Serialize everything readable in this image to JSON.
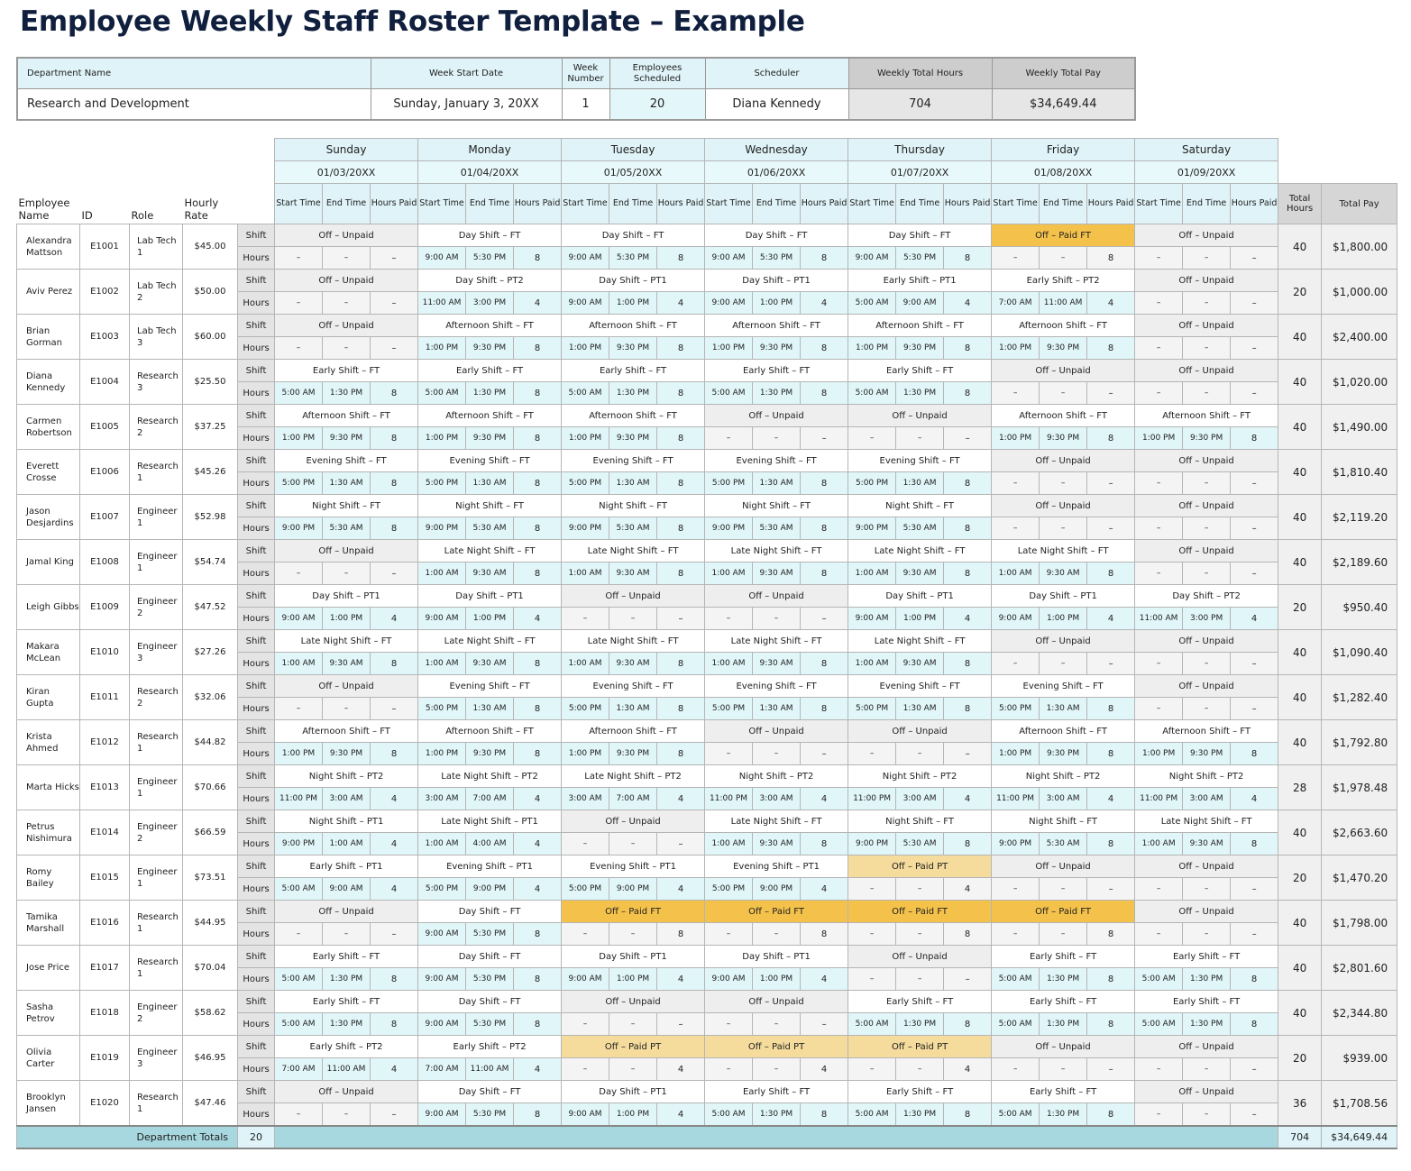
{
  "title": "Employee Weekly Staff Roster Template – Example",
  "summary": {
    "headers": [
      "Department Name",
      "Week Start Date",
      "Week Number",
      "Employees Scheduled",
      "Scheduler",
      "Weekly Total Hours",
      "Weekly Total Pay"
    ],
    "values": [
      "Research and Development",
      "Sunday, January 3, 20XX",
      1,
      20,
      "Diana Kennedy",
      704,
      "$34,649.44"
    ]
  },
  "days": [
    {
      "name": "Sunday",
      "date": "01/03/20XX"
    },
    {
      "name": "Monday",
      "date": "01/04/20XX"
    },
    {
      "name": "Tuesday",
      "date": "01/05/20XX"
    },
    {
      "name": "Wednesday",
      "date": "01/06/20XX"
    },
    {
      "name": "Thursday",
      "date": "01/07/20XX"
    },
    {
      "name": "Friday",
      "date": "01/08/20XX"
    },
    {
      "name": "Saturday",
      "date": "01/09/20XX"
    }
  ],
  "day_columns": [
    "Start Time",
    "End Time",
    "Hours Paid"
  ],
  "left_headers": [
    "Employee Name",
    "ID",
    "Role",
    "Hourly Rate"
  ],
  "right_headers": [
    "Total Hours",
    "Total Pay"
  ],
  "row_labels": [
    "Shift",
    "Hours"
  ],
  "employees": [
    {
      "name": "Alexandra Mattson",
      "id": "E1001",
      "role": "Lab Tech 1",
      "rate": "$45.00",
      "total_hours": 40,
      "total_pay": "$1,800.00",
      "days": [
        [
          "Off – Unpaid",
          "–",
          "–",
          "–"
        ],
        [
          "Day Shift – FT",
          "9:00 AM",
          "5:30 PM",
          8
        ],
        [
          "Day Shift – FT",
          "9:00 AM",
          "5:30 PM",
          8
        ],
        [
          "Day Shift – FT",
          "9:00 AM",
          "5:30 PM",
          8
        ],
        [
          "Day Shift – FT",
          "9:00 AM",
          "5:30 PM",
          8
        ],
        [
          "Off – Paid FT",
          "–",
          "–",
          8
        ],
        [
          "Off – Unpaid",
          "–",
          "–",
          "–"
        ]
      ]
    },
    {
      "name": "Aviv Perez",
      "id": "E1002",
      "role": "Lab Tech 2",
      "rate": "$50.00",
      "total_hours": 20,
      "total_pay": "$1,000.00",
      "days": [
        [
          "Off – Unpaid",
          "–",
          "–",
          "–"
        ],
        [
          "Day Shift – PT2",
          "11:00 AM",
          "3:00 PM",
          4
        ],
        [
          "Day Shift – PT1",
          "9:00 AM",
          "1:00 PM",
          4
        ],
        [
          "Day Shift – PT1",
          "9:00 AM",
          "1:00 PM",
          4
        ],
        [
          "Early Shift – PT1",
          "5:00 AM",
          "9:00 AM",
          4
        ],
        [
          "Early Shift – PT2",
          "7:00 AM",
          "11:00 AM",
          4
        ],
        [
          "Off – Unpaid",
          "–",
          "–",
          "–"
        ]
      ]
    },
    {
      "name": "Brian Gorman",
      "id": "E1003",
      "role": "Lab Tech 3",
      "rate": "$60.00",
      "total_hours": 40,
      "total_pay": "$2,400.00",
      "days": [
        [
          "Off – Unpaid",
          "–",
          "–",
          "–"
        ],
        [
          "Afternoon Shift – FT",
          "1:00 PM",
          "9:30 PM",
          8
        ],
        [
          "Afternoon Shift – FT",
          "1:00 PM",
          "9:30 PM",
          8
        ],
        [
          "Afternoon Shift – FT",
          "1:00 PM",
          "9:30 PM",
          8
        ],
        [
          "Afternoon Shift – FT",
          "1:00 PM",
          "9:30 PM",
          8
        ],
        [
          "Afternoon Shift – FT",
          "1:00 PM",
          "9:30 PM",
          8
        ],
        [
          "Off – Unpaid",
          "–",
          "–",
          "–"
        ]
      ]
    },
    {
      "name": "Diana Kennedy",
      "id": "E1004",
      "role": "Research 3",
      "rate": "$25.50",
      "total_hours": 40,
      "total_pay": "$1,020.00",
      "days": [
        [
          "Early Shift – FT",
          "5:00 AM",
          "1:30 PM",
          8
        ],
        [
          "Early Shift – FT",
          "5:00 AM",
          "1:30 PM",
          8
        ],
        [
          "Early Shift – FT",
          "5:00 AM",
          "1:30 PM",
          8
        ],
        [
          "Early Shift – FT",
          "5:00 AM",
          "1:30 PM",
          8
        ],
        [
          "Early Shift – FT",
          "5:00 AM",
          "1:30 PM",
          8
        ],
        [
          "Off – Unpaid",
          "–",
          "–",
          "–"
        ],
        [
          "Off – Unpaid",
          "–",
          "–",
          "–"
        ]
      ]
    },
    {
      "name": "Carmen Robertson",
      "id": "E1005",
      "role": "Research 2",
      "rate": "$37.25",
      "total_hours": 40,
      "total_pay": "$1,490.00",
      "days": [
        [
          "Afternoon Shift – FT",
          "1:00 PM",
          "9:30 PM",
          8
        ],
        [
          "Afternoon Shift – FT",
          "1:00 PM",
          "9:30 PM",
          8
        ],
        [
          "Afternoon Shift – FT",
          "1:00 PM",
          "9:30 PM",
          8
        ],
        [
          "Off – Unpaid",
          "–",
          "–",
          "–"
        ],
        [
          "Off – Unpaid",
          "–",
          "–",
          "–"
        ],
        [
          "Afternoon Shift – FT",
          "1:00 PM",
          "9:30 PM",
          8
        ],
        [
          "Afternoon Shift – FT",
          "1:00 PM",
          "9:30 PM",
          8
        ]
      ]
    },
    {
      "name": "Everett Crosse",
      "id": "E1006",
      "role": "Research 1",
      "rate": "$45.26",
      "total_hours": 40,
      "total_pay": "$1,810.40",
      "days": [
        [
          "Evening Shift – FT",
          "5:00 PM",
          "1:30 AM",
          8
        ],
        [
          "Evening Shift – FT",
          "5:00 PM",
          "1:30 AM",
          8
        ],
        [
          "Evening Shift – FT",
          "5:00 PM",
          "1:30 AM",
          8
        ],
        [
          "Evening Shift – FT",
          "5:00 PM",
          "1:30 AM",
          8
        ],
        [
          "Evening Shift – FT",
          "5:00 PM",
          "1:30 AM",
          8
        ],
        [
          "Off – Unpaid",
          "–",
          "–",
          "–"
        ],
        [
          "Off – Unpaid",
          "–",
          "–",
          "–"
        ]
      ]
    },
    {
      "name": "Jason Desjardins",
      "id": "E1007",
      "role": "Engineer 1",
      "rate": "$52.98",
      "total_hours": 40,
      "total_pay": "$2,119.20",
      "days": [
        [
          "Night Shift – FT",
          "9:00 PM",
          "5:30 AM",
          8
        ],
        [
          "Night Shift – FT",
          "9:00 PM",
          "5:30 AM",
          8
        ],
        [
          "Night Shift – FT",
          "9:00 PM",
          "5:30 AM",
          8
        ],
        [
          "Night Shift – FT",
          "9:00 PM",
          "5:30 AM",
          8
        ],
        [
          "Night Shift – FT",
          "9:00 PM",
          "5:30 AM",
          8
        ],
        [
          "Off – Unpaid",
          "–",
          "–",
          "–"
        ],
        [
          "Off – Unpaid",
          "–",
          "–",
          "–"
        ]
      ]
    },
    {
      "name": "Jamal King",
      "id": "E1008",
      "role": "Engineer 1",
      "rate": "$54.74",
      "total_hours": 40,
      "total_pay": "$2,189.60",
      "days": [
        [
          "Off – Unpaid",
          "–",
          "–",
          "–"
        ],
        [
          "Late Night Shift – FT",
          "1:00 AM",
          "9:30 AM",
          8
        ],
        [
          "Late Night Shift – FT",
          "1:00 AM",
          "9:30 AM",
          8
        ],
        [
          "Late Night Shift – FT",
          "1:00 AM",
          "9:30 AM",
          8
        ],
        [
          "Late Night Shift – FT",
          "1:00 AM",
          "9:30 AM",
          8
        ],
        [
          "Late Night Shift – FT",
          "1:00 AM",
          "9:30 AM",
          8
        ],
        [
          "Off – Unpaid",
          "–",
          "–",
          "–"
        ]
      ]
    },
    {
      "name": "Leigh Gibbs",
      "id": "E1009",
      "role": "Engineer 2",
      "rate": "$47.52",
      "total_hours": 20,
      "total_pay": "$950.40",
      "days": [
        [
          "Day Shift – PT1",
          "9:00 AM",
          "1:00 PM",
          4
        ],
        [
          "Day Shift – PT1",
          "9:00 AM",
          "1:00 PM",
          4
        ],
        [
          "Off – Unpaid",
          "–",
          "–",
          "–"
        ],
        [
          "Off – Unpaid",
          "–",
          "–",
          "–"
        ],
        [
          "Day Shift – PT1",
          "9:00 AM",
          "1:00 PM",
          4
        ],
        [
          "Day Shift – PT1",
          "9:00 AM",
          "1:00 PM",
          4
        ],
        [
          "Day Shift – PT2",
          "11:00 AM",
          "3:00 PM",
          4
        ]
      ]
    },
    {
      "name": "Makara McLean",
      "id": "E1010",
      "role": "Engineer 3",
      "rate": "$27.26",
      "total_hours": 40,
      "total_pay": "$1,090.40",
      "days": [
        [
          "Late Night Shift – FT",
          "1:00 AM",
          "9:30 AM",
          8
        ],
        [
          "Late Night Shift – FT",
          "1:00 AM",
          "9:30 AM",
          8
        ],
        [
          "Late Night Shift – FT",
          "1:00 AM",
          "9:30 AM",
          8
        ],
        [
          "Late Night Shift – FT",
          "1:00 AM",
          "9:30 AM",
          8
        ],
        [
          "Late Night Shift – FT",
          "1:00 AM",
          "9:30 AM",
          8
        ],
        [
          "Off – Unpaid",
          "–",
          "–",
          "–"
        ],
        [
          "Off – Unpaid",
          "–",
          "–",
          "–"
        ]
      ]
    },
    {
      "name": "Kiran Gupta",
      "id": "E1011",
      "role": "Research 2",
      "rate": "$32.06",
      "total_hours": 40,
      "total_pay": "$1,282.40",
      "days": [
        [
          "Off – Unpaid",
          "–",
          "–",
          "–"
        ],
        [
          "Evening Shift – FT",
          "5:00 PM",
          "1:30 AM",
          8
        ],
        [
          "Evening Shift – FT",
          "5:00 PM",
          "1:30 AM",
          8
        ],
        [
          "Evening Shift – FT",
          "5:00 PM",
          "1:30 AM",
          8
        ],
        [
          "Evening Shift – FT",
          "5:00 PM",
          "1:30 AM",
          8
        ],
        [
          "Evening Shift – FT",
          "5:00 PM",
          "1:30 AM",
          8
        ],
        [
          "Off – Unpaid",
          "–",
          "–",
          "–"
        ]
      ]
    },
    {
      "name": "Krista Ahmed",
      "id": "E1012",
      "role": "Research 1",
      "rate": "$44.82",
      "total_hours": 40,
      "total_pay": "$1,792.80",
      "days": [
        [
          "Afternoon Shift – FT",
          "1:00 PM",
          "9:30 PM",
          8
        ],
        [
          "Afternoon Shift – FT",
          "1:00 PM",
          "9:30 PM",
          8
        ],
        [
          "Afternoon Shift – FT",
          "1:00 PM",
          "9:30 PM",
          8
        ],
        [
          "Off – Unpaid",
          "–",
          "–",
          "–"
        ],
        [
          "Off – Unpaid",
          "–",
          "–",
          "–"
        ],
        [
          "Afternoon Shift – FT",
          "1:00 PM",
          "9:30 PM",
          8
        ],
        [
          "Afternoon Shift – FT",
          "1:00 PM",
          "9:30 PM",
          8
        ]
      ]
    },
    {
      "name": "Marta Hicks",
      "id": "E1013",
      "role": "Engineer 1",
      "rate": "$70.66",
      "total_hours": 28,
      "total_pay": "$1,978.48",
      "days": [
        [
          "Night Shift – PT2",
          "11:00 PM",
          "3:00 AM",
          4
        ],
        [
          "Late Night Shift – PT2",
          "3:00 AM",
          "7:00 AM",
          4
        ],
        [
          "Late Night Shift – PT2",
          "3:00 AM",
          "7:00 AM",
          4
        ],
        [
          "Night Shift – PT2",
          "11:00 PM",
          "3:00 AM",
          4
        ],
        [
          "Night Shift – PT2",
          "11:00 PM",
          "3:00 AM",
          4
        ],
        [
          "Night Shift – PT2",
          "11:00 PM",
          "3:00 AM",
          4
        ],
        [
          "Night Shift – PT2",
          "11:00 PM",
          "3:00 AM",
          4
        ]
      ]
    },
    {
      "name": "Petrus Nishimura",
      "id": "E1014",
      "role": "Engineer 2",
      "rate": "$66.59",
      "total_hours": 40,
      "total_pay": "$2,663.60",
      "days": [
        [
          "Night Shift – PT1",
          "9:00 PM",
          "1:00 AM",
          4
        ],
        [
          "Late Night Shift – PT1",
          "1:00 AM",
          "4:00 AM",
          4
        ],
        [
          "Off – Unpaid",
          "–",
          "–",
          "–"
        ],
        [
          "Late Night Shift – FT",
          "1:00 AM",
          "9:30 AM",
          8
        ],
        [
          "Night Shift – FT",
          "9:00 PM",
          "5:30 AM",
          8
        ],
        [
          "Night Shift – FT",
          "9:00 PM",
          "5:30 AM",
          8
        ],
        [
          "Late Night Shift – FT",
          "1:00 AM",
          "9:30 AM",
          8
        ]
      ]
    },
    {
      "name": "Romy Bailey",
      "id": "E1015",
      "role": "Engineer 1",
      "rate": "$73.51",
      "total_hours": 20,
      "total_pay": "$1,470.20",
      "days": [
        [
          "Early Shift – PT1",
          "5:00 AM",
          "9:00 AM",
          4
        ],
        [
          "Evening Shift – PT1",
          "5:00 PM",
          "9:00 PM",
          4
        ],
        [
          "Evening Shift – PT1",
          "5:00 PM",
          "9:00 PM",
          4
        ],
        [
          "Evening Shift – PT1",
          "5:00 PM",
          "9:00 PM",
          4
        ],
        [
          "Off – Paid PT",
          "–",
          "–",
          4
        ],
        [
          "Off – Unpaid",
          "–",
          "–",
          "–"
        ],
        [
          "Off – Unpaid",
          "–",
          "–",
          "–"
        ]
      ]
    },
    {
      "name": "Tamika Marshall",
      "id": "E1016",
      "role": "Research 1",
      "rate": "$44.95",
      "total_hours": 40,
      "total_pay": "$1,798.00",
      "days": [
        [
          "Off – Unpaid",
          "–",
          "–",
          "–"
        ],
        [
          "Day Shift – FT",
          "9:00 AM",
          "5:30 PM",
          8
        ],
        [
          "Off – Paid FT",
          "–",
          "–",
          8
        ],
        [
          "Off – Paid FT",
          "–",
          "–",
          8
        ],
        [
          "Off – Paid FT",
          "–",
          "–",
          8
        ],
        [
          "Off – Paid FT",
          "–",
          "–",
          8
        ],
        [
          "Off – Unpaid",
          "–",
          "–",
          "–"
        ]
      ]
    },
    {
      "name": "Jose Price",
      "id": "E1017",
      "role": "Research 1",
      "rate": "$70.04",
      "total_hours": 40,
      "total_pay": "$2,801.60",
      "days": [
        [
          "Early Shift – FT",
          "5:00 AM",
          "1:30 PM",
          8
        ],
        [
          "Day Shift – FT",
          "9:00 AM",
          "5:30 PM",
          8
        ],
        [
          "Day Shift – PT1",
          "9:00 AM",
          "1:00 PM",
          4
        ],
        [
          "Day Shift – PT1",
          "9:00 AM",
          "1:00 PM",
          4
        ],
        [
          "Off – Unpaid",
          "–",
          "–",
          "–"
        ],
        [
          "Early Shift – FT",
          "5:00 AM",
          "1:30 PM",
          8
        ],
        [
          "Early Shift – FT",
          "5:00 AM",
          "1:30 PM",
          8
        ]
      ]
    },
    {
      "name": "Sasha Petrov",
      "id": "E1018",
      "role": "Engineer 2",
      "rate": "$58.62",
      "total_hours": 40,
      "total_pay": "$2,344.80",
      "days": [
        [
          "Early Shift – FT",
          "5:00 AM",
          "1:30 PM",
          8
        ],
        [
          "Day Shift – FT",
          "9:00 AM",
          "5:30 PM",
          8
        ],
        [
          "Off – Unpaid",
          "–",
          "–",
          "–"
        ],
        [
          "Off – Unpaid",
          "–",
          "–",
          "–"
        ],
        [
          "Early Shift – FT",
          "5:00 AM",
          "1:30 PM",
          8
        ],
        [
          "Early Shift – FT",
          "5:00 AM",
          "1:30 PM",
          8
        ],
        [
          "Early Shift – FT",
          "5:00 AM",
          "1:30 PM",
          8
        ]
      ]
    },
    {
      "name": "Olivia Carter",
      "id": "E1019",
      "role": "Engineer 3",
      "rate": "$46.95",
      "total_hours": 20,
      "total_pay": "$939.00",
      "days": [
        [
          "Early Shift – PT2",
          "7:00 AM",
          "11:00 AM",
          4
        ],
        [
          "Early Shift – PT2",
          "7:00 AM",
          "11:00 AM",
          4
        ],
        [
          "Off – Paid PT",
          "–",
          "–",
          4
        ],
        [
          "Off – Paid PT",
          "–",
          "–",
          4
        ],
        [
          "Off – Paid PT",
          "–",
          "–",
          4
        ],
        [
          "Off – Unpaid",
          "–",
          "–",
          "–"
        ],
        [
          "Off – Unpaid",
          "–",
          "–",
          "–"
        ]
      ]
    },
    {
      "name": "Brooklyn Jansen",
      "id": "E1020",
      "role": "Research 1",
      "rate": "$47.46",
      "total_hours": 36,
      "total_pay": "$1,708.56",
      "days": [
        [
          "Off – Unpaid",
          "–",
          "–",
          "–"
        ],
        [
          "Day Shift – FT",
          "9:00 AM",
          "5:30 PM",
          8
        ],
        [
          "Day Shift – PT1",
          "9:00 AM",
          "1:00 PM",
          4
        ],
        [
          "Early Shift – FT",
          "5:00 AM",
          "1:30 PM",
          8
        ],
        [
          "Early Shift – FT",
          "5:00 AM",
          "1:30 PM",
          8
        ],
        [
          "Early Shift – FT",
          "5:00 AM",
          "1:30 PM",
          8
        ],
        [
          "Off – Unpaid",
          "–",
          "–",
          "–"
        ]
      ]
    }
  ],
  "totals": {
    "label": "Department Totals",
    "employees": 20,
    "hours": 704,
    "pay": "$34,649.44"
  }
}
